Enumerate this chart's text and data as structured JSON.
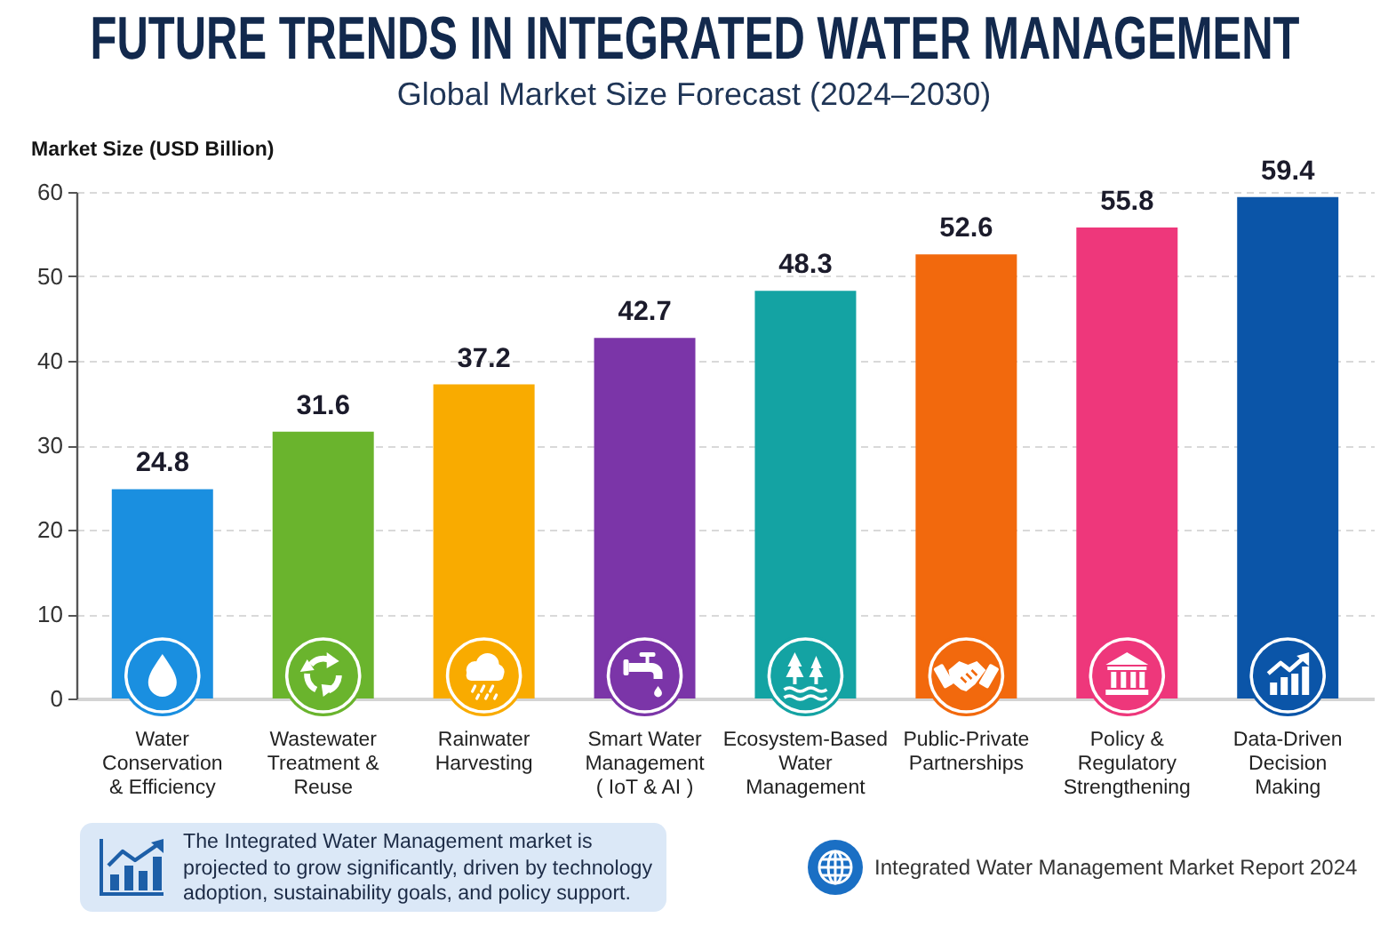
{
  "chart_data": {
    "type": "bar",
    "title": "FUTURE TRENDS IN INTEGRATED WATER MANAGEMENT",
    "subtitle": "Global Market Size Forecast (2024–2030)",
    "ylabel": "Market Size (USD Billion)",
    "categories": [
      "Water Conservation & Efficiency",
      "Wastewater Treatment & Reuse",
      "Rainwater Harvesting",
      "Smart Water Management ( IoT & AI )",
      "Ecosystem-Based Water Management",
      "Public-Private Partnerships",
      "Policy & Regulatory Strengthening",
      "Data-Driven Decision Making"
    ],
    "values": [
      24.8,
      31.6,
      37.2,
      42.7,
      48.3,
      52.6,
      55.8,
      59.4
    ],
    "colors": [
      "#1a8fe0",
      "#6ab42d",
      "#f9ab00",
      "#7b35a8",
      "#14a3a3",
      "#f2690d",
      "#ee377b",
      "#0b55a8"
    ],
    "ylim": [
      0,
      60
    ],
    "yticks": [
      0,
      10,
      20,
      30,
      40,
      50,
      60
    ],
    "grid": "y",
    "data_labels": true,
    "annotations": [
      "The Integrated Water Management market is projected to grow significantly, driven by technology adoption, sustainability goals, and policy support.",
      "Integrated Water Management Market Report 2024"
    ]
  }
}
